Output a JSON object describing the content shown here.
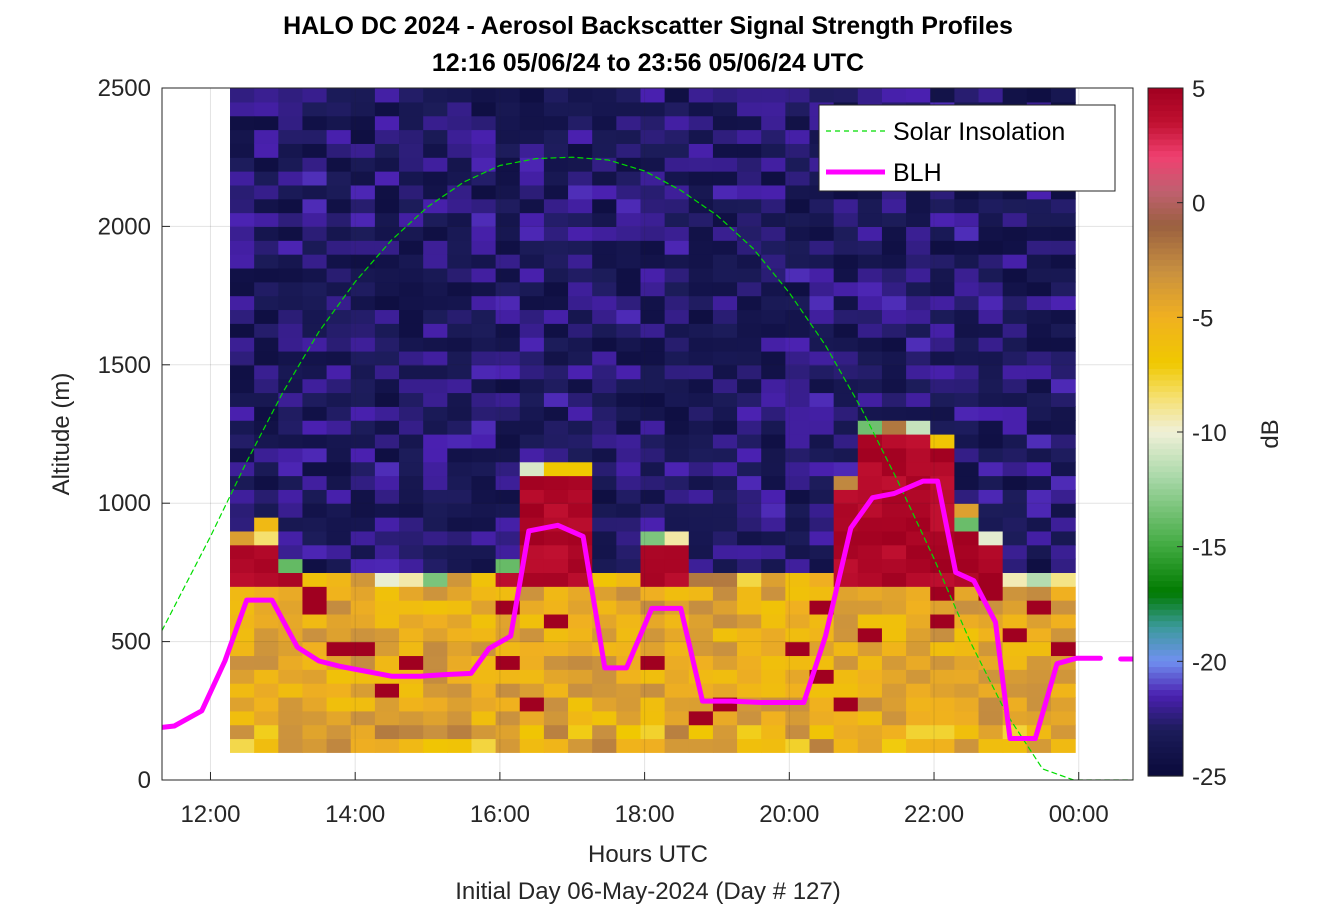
{
  "chart_data": {
    "type": "heatmap",
    "title": "HALO DC 2024 - Aerosol Backscatter Signal Strength Profiles",
    "subtitle": "12:16 05/06/24 to 23:56 05/06/24  UTC",
    "xlabel": "Hours UTC",
    "footer": "Initial Day 06-May-2024 (Day # 127)",
    "ylabel": "Altitude (m)",
    "colorbar_label": "dB",
    "xlim": [
      11.33,
      24.75
    ],
    "ylim": [
      0,
      2500
    ],
    "x_ticks": [
      12,
      14,
      16,
      18,
      20,
      22,
      24
    ],
    "x_tick_labels": [
      "12:00",
      "14:00",
      "16:00",
      "18:00",
      "20:00",
      "22:00",
      "00:00"
    ],
    "y_ticks": [
      0,
      500,
      1000,
      1500,
      2000,
      2500
    ],
    "y_tick_labels": [
      "0",
      "500",
      "1000",
      "1500",
      "2000",
      "2500"
    ],
    "clim": [
      -25,
      5
    ],
    "colorbar_ticks": [
      5,
      0,
      -5,
      -10,
      -15,
      -20,
      -25
    ],
    "colorbar_tick_labels": [
      "5",
      "0",
      "-5",
      "-10",
      "-15",
      "-20",
      "-25"
    ],
    "grid": true,
    "legend_position": "top-right",
    "heatmap_extent": {
      "x_start": 12.27,
      "x_end": 23.95,
      "y_start": 100,
      "y_end": 2500
    },
    "colors": {
      "blh": "#ff00ff",
      "solar": "#00dd00",
      "colormap_stops": [
        {
          "v": -25,
          "c": "#0a0a3a"
        },
        {
          "v": -23,
          "c": "#1c1c5a"
        },
        {
          "v": -21.5,
          "c": "#4a20b0"
        },
        {
          "v": -20,
          "c": "#7090f0"
        },
        {
          "v": -18.5,
          "c": "#3a9a9a"
        },
        {
          "v": -17,
          "c": "#007a00"
        },
        {
          "v": -15,
          "c": "#40aa40"
        },
        {
          "v": -12,
          "c": "#a8d8a8"
        },
        {
          "v": -10,
          "c": "#f0f0d8"
        },
        {
          "v": -8.5,
          "c": "#f5e070"
        },
        {
          "v": -7,
          "c": "#f0c800"
        },
        {
          "v": -5,
          "c": "#f0b020"
        },
        {
          "v": -3,
          "c": "#c89040"
        },
        {
          "v": -1,
          "c": "#9a6040"
        },
        {
          "v": 0.5,
          "c": "#c06070"
        },
        {
          "v": 2,
          "c": "#f04070"
        },
        {
          "v": 3.5,
          "c": "#c01030"
        },
        {
          "v": 5,
          "c": "#a00020"
        }
      ]
    },
    "series": [
      {
        "name": "Solar Insolation",
        "type": "line",
        "style": "dashed",
        "x": [
          11.33,
          12.0,
          12.5,
          13.0,
          13.5,
          14.0,
          14.5,
          15.0,
          15.5,
          16.0,
          16.5,
          17.0,
          17.5,
          18.0,
          18.5,
          19.0,
          19.5,
          20.0,
          20.5,
          21.0,
          21.5,
          22.0,
          22.5,
          23.0,
          23.5,
          23.93,
          24.2,
          24.75
        ],
        "y": [
          540,
          880,
          1150,
          1400,
          1620,
          1800,
          1950,
          2070,
          2160,
          2220,
          2245,
          2250,
          2240,
          2200,
          2130,
          2040,
          1920,
          1760,
          1570,
          1340,
          1080,
          800,
          500,
          240,
          40,
          0,
          0,
          0
        ]
      },
      {
        "name": "BLH",
        "type": "line",
        "style": "solid",
        "x": [
          11.33,
          11.5,
          11.88,
          12.2,
          12.5,
          12.85,
          13.2,
          13.5,
          13.8,
          14.2,
          14.5,
          14.9,
          15.2,
          15.6,
          15.85,
          16.15,
          16.4,
          16.8,
          17.15,
          17.45,
          17.75,
          18.1,
          18.5,
          18.8,
          19.2,
          19.6,
          20.0,
          20.2,
          20.5,
          20.85,
          21.15,
          21.45,
          21.85,
          22.05,
          22.3,
          22.55,
          22.85,
          23.05,
          23.4,
          23.7,
          23.97,
          24.3
        ],
        "y": [
          190,
          195,
          250,
          430,
          650,
          650,
          480,
          430,
          410,
          390,
          375,
          375,
          380,
          385,
          475,
          520,
          900,
          920,
          880,
          405,
          405,
          620,
          620,
          285,
          285,
          280,
          280,
          280,
          520,
          910,
          1020,
          1035,
          1080,
          1080,
          750,
          720,
          570,
          150,
          150,
          420,
          440,
          440
        ]
      },
      {
        "name": "BLH-extension",
        "type": "line",
        "style": "dashed",
        "x": [
          24.58,
          24.75
        ],
        "y": [
          437,
          437
        ]
      }
    ]
  }
}
